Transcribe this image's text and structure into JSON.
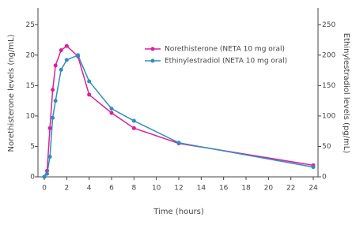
{
  "chart_data": {
    "type": "line",
    "x_label": "Time (hours)",
    "y_label": "Norethisterone levels (ng/mL)",
    "y2_label": "Ethinylestradiol levels (pg/mL)",
    "xlim": [
      0,
      24
    ],
    "xticks": [
      0,
      2,
      4,
      6,
      8,
      10,
      12,
      14,
      16,
      18,
      20,
      22,
      24
    ],
    "ylim": [
      0,
      27.5
    ],
    "yticks": [
      0,
      5,
      10,
      15,
      20,
      25
    ],
    "y2lim": [
      0,
      275
    ],
    "y2ticks": [
      0,
      50,
      100,
      150,
      200,
      250
    ],
    "series": [
      {
        "name": "Norethisterone (NETA 10 mg oral)",
        "color": "#dc1f9b",
        "x": [
          0,
          0.25,
          0.5,
          0.75,
          1,
          1.5,
          2,
          3,
          4,
          6,
          8,
          12,
          24
        ],
        "values": [
          0,
          1,
          8,
          14.3,
          18.3,
          20.8,
          21.5,
          19.8,
          13.5,
          10.5,
          8,
          5.5,
          1.9
        ]
      },
      {
        "name": "Ethinylestradiol (NETA 10 mg oral)",
        "color": "#2e8fc0",
        "axis": "y2",
        "x": [
          0,
          0.25,
          0.5,
          0.75,
          1,
          1.5,
          2,
          3,
          4,
          6,
          8,
          12,
          24
        ],
        "values": [
          0,
          5,
          33,
          97,
          125,
          176,
          192,
          200,
          157,
          112,
          92,
          56,
          16
        ]
      }
    ]
  }
}
